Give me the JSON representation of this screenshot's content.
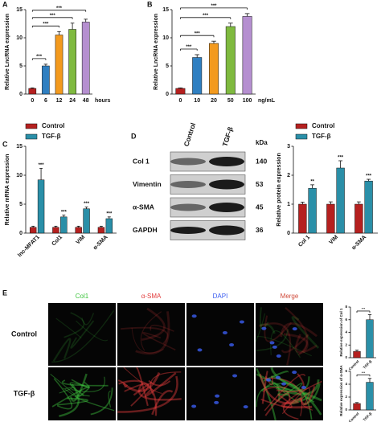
{
  "chart_data": [
    {
      "panel": "A",
      "type": "bar",
      "ylabel": "Relative LncRNA expression",
      "xunit": "hours",
      "categories": [
        "0",
        "6",
        "12",
        "24",
        "48"
      ],
      "values": [
        1,
        5,
        10.5,
        11.5,
        12.8
      ],
      "errors": [
        0.1,
        0.3,
        0.6,
        1.1,
        0.5
      ],
      "colors": [
        "#b5201f",
        "#2f7fc1",
        "#f39a1e",
        "#7fba3f",
        "#b58fd0"
      ],
      "ylim": [
        0,
        15
      ],
      "yticks": [
        0,
        5,
        10,
        15
      ],
      "comparisons": [
        {
          "from": "0",
          "to": "6",
          "label": "***"
        },
        {
          "from": "0",
          "to": "12",
          "label": "***"
        },
        {
          "from": "0",
          "to": "24",
          "label": "***"
        },
        {
          "from": "0",
          "to": "48",
          "label": "***"
        }
      ]
    },
    {
      "panel": "B",
      "type": "bar",
      "ylabel": "Relative LncRNA expression",
      "xunit": "ng/mL",
      "categories": [
        "0",
        "10",
        "20",
        "50",
        "100"
      ],
      "values": [
        1,
        6.5,
        9,
        12,
        13.8
      ],
      "errors": [
        0.1,
        0.5,
        0.4,
        0.6,
        0.5
      ],
      "colors": [
        "#b5201f",
        "#2f7fc1",
        "#f39a1e",
        "#7fba3f",
        "#b58fd0"
      ],
      "ylim": [
        0,
        15
      ],
      "yticks": [
        0,
        5,
        10,
        15
      ],
      "comparisons": [
        {
          "from": "0",
          "to": "10",
          "label": "***"
        },
        {
          "from": "0",
          "to": "20",
          "label": "***"
        },
        {
          "from": "0",
          "to": "50",
          "label": "***"
        },
        {
          "from": "0",
          "to": "100",
          "label": "***"
        }
      ]
    },
    {
      "panel": "C",
      "type": "bar",
      "ylabel": "Relative mRNA expression",
      "legend": "top",
      "categories": [
        "lnc-MFAT1",
        "Col1",
        "VIM",
        "α-SMA"
      ],
      "series": [
        {
          "name": "Control",
          "color": "#b5201f",
          "values": [
            1,
            1,
            1,
            1
          ],
          "errors": [
            0.2,
            0.2,
            0.2,
            0.2
          ]
        },
        {
          "name": "TGF-β",
          "color": "#2a8fa8",
          "values": [
            9.2,
            2.8,
            4.2,
            2.5
          ],
          "errors": [
            2,
            0.3,
            0.3,
            0.3
          ],
          "significance": [
            "***",
            "***",
            "***",
            "***"
          ]
        }
      ],
      "ylim": [
        0,
        15
      ],
      "yticks": [
        0,
        5,
        10,
        15
      ]
    },
    {
      "type": "bar",
      "ylabel": "Relative protein expression",
      "legend": "top",
      "categories": [
        "Col 1",
        "VIM",
        "α-SMA"
      ],
      "series": [
        {
          "name": "Control",
          "color": "#b5201f",
          "values": [
            1,
            1,
            1
          ],
          "errors": [
            0.07,
            0.08,
            0.08
          ]
        },
        {
          "name": "TGF-β",
          "color": "#2a8fa8",
          "values": [
            1.55,
            2.25,
            1.8
          ],
          "errors": [
            0.12,
            0.25,
            0.06
          ],
          "significance": [
            "**",
            "***",
            "***"
          ]
        }
      ],
      "ylim": [
        0,
        3
      ],
      "yticks": [
        0,
        1,
        2,
        3
      ]
    },
    {
      "type": "bar",
      "ylabel": "Relative expression of Col 1",
      "categories": [
        "Control",
        "TGF-β"
      ],
      "values": [
        1,
        6
      ],
      "errors": [
        0.2,
        0.8
      ],
      "colors": [
        "#b5201f",
        "#2a8fa8"
      ],
      "ylim": [
        0,
        8
      ],
      "yticks": [
        0,
        2,
        4,
        6,
        8
      ],
      "comparisons": [
        {
          "from": "Control",
          "to": "TGF-β",
          "label": "***"
        }
      ]
    },
    {
      "type": "bar",
      "ylabel": "Relative expression of α-SMA",
      "categories": [
        "Control",
        "TGF-β"
      ],
      "values": [
        1,
        4.3
      ],
      "errors": [
        0.15,
        0.6
      ],
      "colors": [
        "#b5201f",
        "#2a8fa8"
      ],
      "ylim": [
        0,
        6
      ],
      "yticks": [
        0,
        2,
        4,
        6
      ],
      "comparisons": [
        {
          "from": "Control",
          "to": "TGF-β",
          "label": "***"
        }
      ]
    }
  ],
  "blot": {
    "panel": "D",
    "lanes": [
      "Control",
      "TGF-β"
    ],
    "unit": "kDa",
    "rows": [
      {
        "label": "Col 1",
        "kda": 140
      },
      {
        "label": "Vimentin",
        "kda": 53
      },
      {
        "label": "α-SMA",
        "kda": 45
      },
      {
        "label": "GAPDH",
        "kda": 36
      }
    ]
  },
  "microscopy": {
    "panel": "E",
    "channels": [
      {
        "label": "Col1",
        "color": "#3ec43e"
      },
      {
        "label": "α-SMA",
        "color": "#e23b3b"
      },
      {
        "label": "DAPI",
        "color": "#3a5cf0"
      },
      {
        "label": "Merge",
        "color": "#d04a3a"
      }
    ],
    "conditions": [
      "Control",
      "TGF-β"
    ]
  }
}
